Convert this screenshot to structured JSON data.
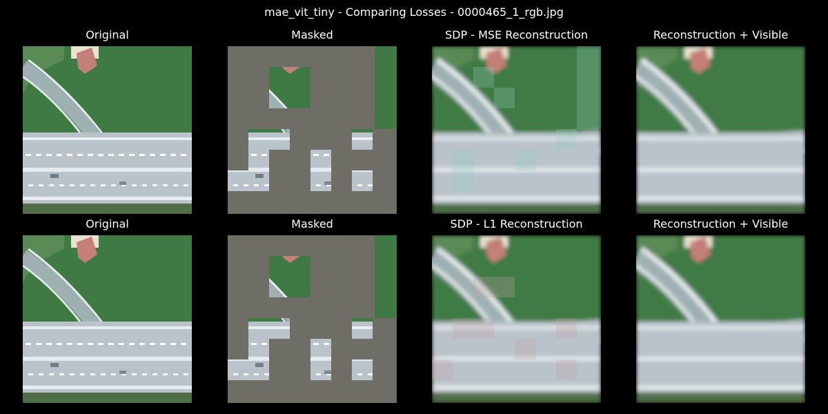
{
  "suptitle": "mae_vit_tiny - Comparing Losses - 0000465_1_rgb.jpg",
  "rows": [
    {
      "titles": [
        "Original",
        "Masked",
        "SDP - MSE Reconstruction",
        "Reconstruction + Visible"
      ],
      "variant": "mse"
    },
    {
      "titles": [
        "Original",
        "Masked",
        "SDP - L1 Reconstruction",
        "Reconstruction + Visible"
      ],
      "variant": "l1"
    }
  ],
  "colors": {
    "background": "#000000",
    "mask_gray": "#6e6d66",
    "field_green": "#3f7a45",
    "road_gray": "#b9c3c9",
    "roof_red": "#c47f78"
  }
}
